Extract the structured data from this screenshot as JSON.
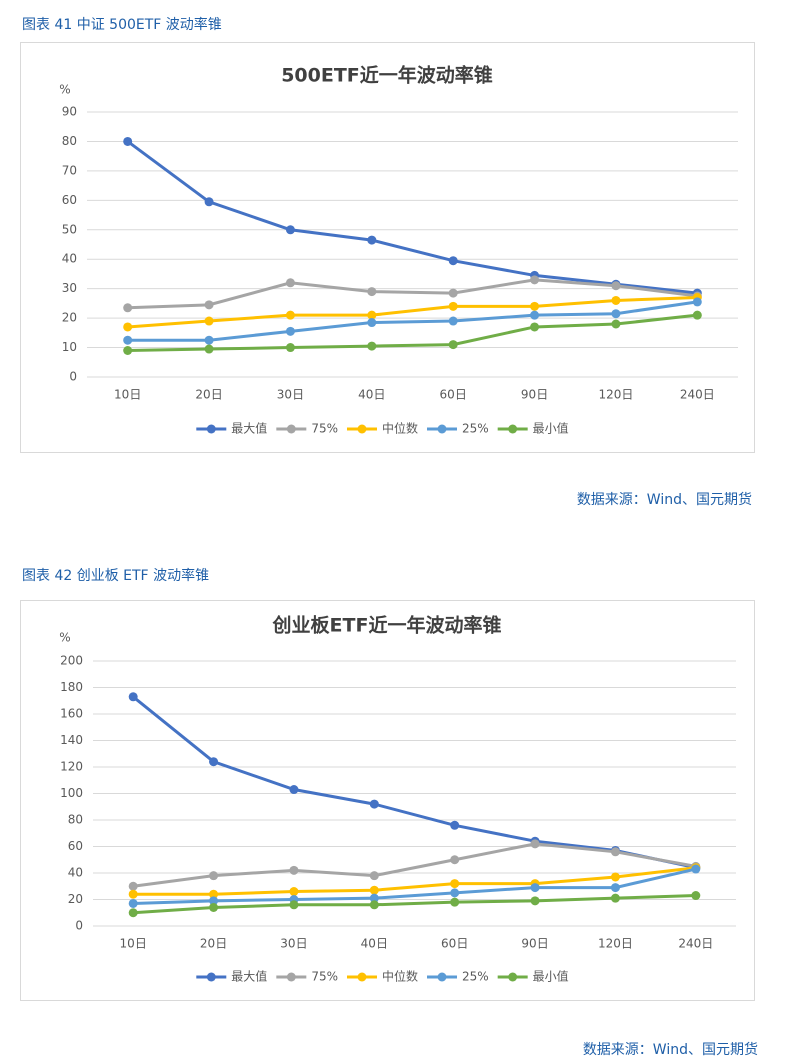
{
  "captions": [
    "图表 41  中证 500ETF 波动率锥",
    "图表 42  创业板 ETF 波动率锥"
  ],
  "sources": [
    "数据来源：Wind、国元期货",
    "数据来源：Wind、国元期货"
  ],
  "chart_data": [
    {
      "type": "line",
      "title": "500ETF近一年波动率锥",
      "y_label": "%",
      "categories": [
        "10日",
        "20日",
        "30日",
        "40日",
        "60日",
        "90日",
        "120日",
        "240日"
      ],
      "ylim": [
        0,
        90
      ],
      "yticks": [
        0,
        10,
        20,
        30,
        40,
        50,
        60,
        70,
        80,
        90
      ],
      "grid": true,
      "legend": "bottom",
      "series": [
        {
          "name": "最大值",
          "color": "#4472c4",
          "values": [
            80,
            59.5,
            50,
            46.5,
            39.5,
            34.5,
            31.5,
            28.5
          ]
        },
        {
          "name": "75%",
          "color": "#a5a5a5",
          "values": [
            23.5,
            24.5,
            32,
            29,
            28.5,
            33,
            31,
            27.5
          ]
        },
        {
          "name": "中位数",
          "color": "#ffc000",
          "values": [
            17,
            19,
            21,
            21,
            24,
            24,
            26,
            27
          ]
        },
        {
          "name": "25%",
          "color": "#5b9bd5",
          "values": [
            12.5,
            12.5,
            15.5,
            18.5,
            19,
            21,
            21.5,
            25.5
          ]
        },
        {
          "name": "最小值",
          "color": "#70ad47",
          "values": [
            9,
            9.5,
            10,
            10.5,
            11,
            17,
            18,
            21
          ]
        }
      ]
    },
    {
      "type": "line",
      "title": "创业板ETF近一年波动率锥",
      "y_label": "%",
      "categories": [
        "10日",
        "20日",
        "30日",
        "40日",
        "60日",
        "90日",
        "120日",
        "240日"
      ],
      "ylim": [
        0,
        200
      ],
      "yticks": [
        0,
        20,
        40,
        60,
        80,
        100,
        120,
        140,
        160,
        180,
        200
      ],
      "grid": true,
      "legend": "bottom",
      "series": [
        {
          "name": "最大值",
          "color": "#4472c4",
          "values": [
            173,
            124,
            103,
            92,
            76,
            64,
            57,
            44
          ]
        },
        {
          "name": "75%",
          "color": "#a5a5a5",
          "values": [
            30,
            38,
            42,
            38,
            50,
            62,
            56,
            45
          ]
        },
        {
          "name": "中位数",
          "color": "#ffc000",
          "values": [
            24,
            24,
            26,
            27,
            32,
            32,
            37,
            44
          ]
        },
        {
          "name": "25%",
          "color": "#5b9bd5",
          "values": [
            17,
            19,
            20,
            21,
            25,
            29,
            29,
            43
          ]
        },
        {
          "name": "最小值",
          "color": "#70ad47",
          "values": [
            10,
            14,
            16,
            16,
            18,
            19,
            21,
            23
          ]
        }
      ]
    }
  ]
}
